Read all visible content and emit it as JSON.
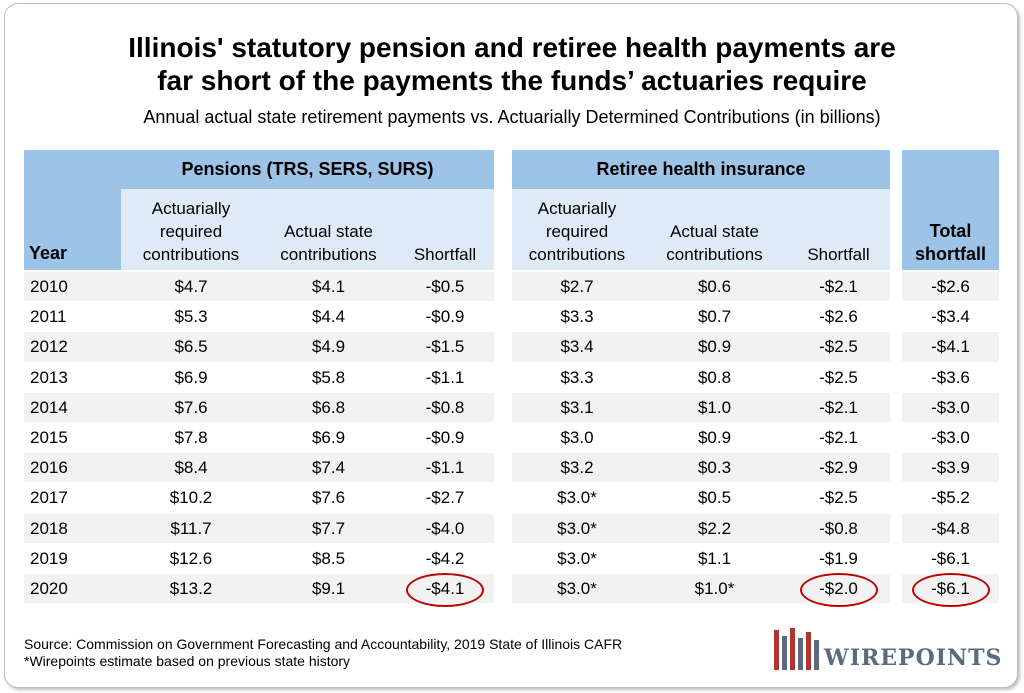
{
  "title_line1": "Illinois' statutory pension and retiree health payments are",
  "title_line2": "far short of the payments the funds’ actuaries require",
  "subtitle": "Annual actual state retirement payments vs. Actuarially Determined Contributions (in billions)",
  "headers": {
    "year": "Year",
    "pensions_group": "Pensions (TRS, SERS, SURS)",
    "health_group": "Retiree health insurance",
    "actuarially_line1": "Actuarially",
    "actuarially_line2": "required",
    "actuarially_line3": "contributions",
    "actual_line1": "Actual state",
    "actual_line2": "contributions",
    "shortfall": "Shortfall",
    "total_line1": "Total",
    "total_line2": "shortfall"
  },
  "chart_data": {
    "type": "table",
    "columns": [
      "Year",
      "Pensions Actuarially required contributions",
      "Pensions Actual state contributions",
      "Pensions Shortfall",
      "Retiree health Actuarially required contributions",
      "Retiree health Actual state contributions",
      "Retiree health Shortfall",
      "Total shortfall"
    ],
    "rows": [
      [
        "2010",
        "$4.7",
        "$4.1",
        "-$0.5",
        "$2.7",
        "$0.6",
        "-$2.1",
        "-$2.6"
      ],
      [
        "2011",
        "$5.3",
        "$4.4",
        "-$0.9",
        "$3.3",
        "$0.7",
        "-$2.6",
        "-$3.4"
      ],
      [
        "2012",
        "$6.5",
        "$4.9",
        "-$1.5",
        "$3.4",
        "$0.9",
        "-$2.5",
        "-$4.1"
      ],
      [
        "2013",
        "$6.9",
        "$5.8",
        "-$1.1",
        "$3.3",
        "$0.8",
        "-$2.5",
        "-$3.6"
      ],
      [
        "2014",
        "$7.6",
        "$6.8",
        "-$0.8",
        "$3.1",
        "$1.0",
        "-$2.1",
        "-$3.0"
      ],
      [
        "2015",
        "$7.8",
        "$6.9",
        "-$0.9",
        "$3.0",
        "$0.9",
        "-$2.1",
        "-$3.0"
      ],
      [
        "2016",
        "$8.4",
        "$7.4",
        "-$1.1",
        "$3.2",
        "$0.3",
        "-$2.9",
        "-$3.9"
      ],
      [
        "2017",
        "$10.2",
        "$7.6",
        "-$2.7",
        "$3.0*",
        "$0.5",
        "-$2.5",
        "-$5.2"
      ],
      [
        "2018",
        "$11.7",
        "$7.7",
        "-$4.0",
        "$3.0*",
        "$2.2",
        "-$0.8",
        "-$4.8"
      ],
      [
        "2019",
        "$12.6",
        "$8.5",
        "-$4.2",
        "$3.0*",
        "$1.1",
        "-$1.9",
        "-$6.1"
      ],
      [
        "2020",
        "$13.2",
        "$9.1",
        "-$4.1",
        "$3.0*",
        "$1.0*",
        "-$2.0",
        "-$6.1"
      ]
    ],
    "highlighted_cells": [
      [
        10,
        3
      ],
      [
        10,
        6
      ],
      [
        10,
        7
      ]
    ]
  },
  "source_line1": "Source: Commission on Government Forecasting and Accountability, 2019 State of Illinois CAFR",
  "source_line2": "*Wirepoints estimate based on previous state history",
  "logo_text": "WIREPOINTS",
  "colors": {
    "header_dark": "#9dc3e6",
    "header_light": "#deebf7",
    "row_shade": "#f2f2f2",
    "highlight": "#c00000",
    "logo_red": "#b3332e",
    "logo_gray": "#5b6b7d"
  }
}
